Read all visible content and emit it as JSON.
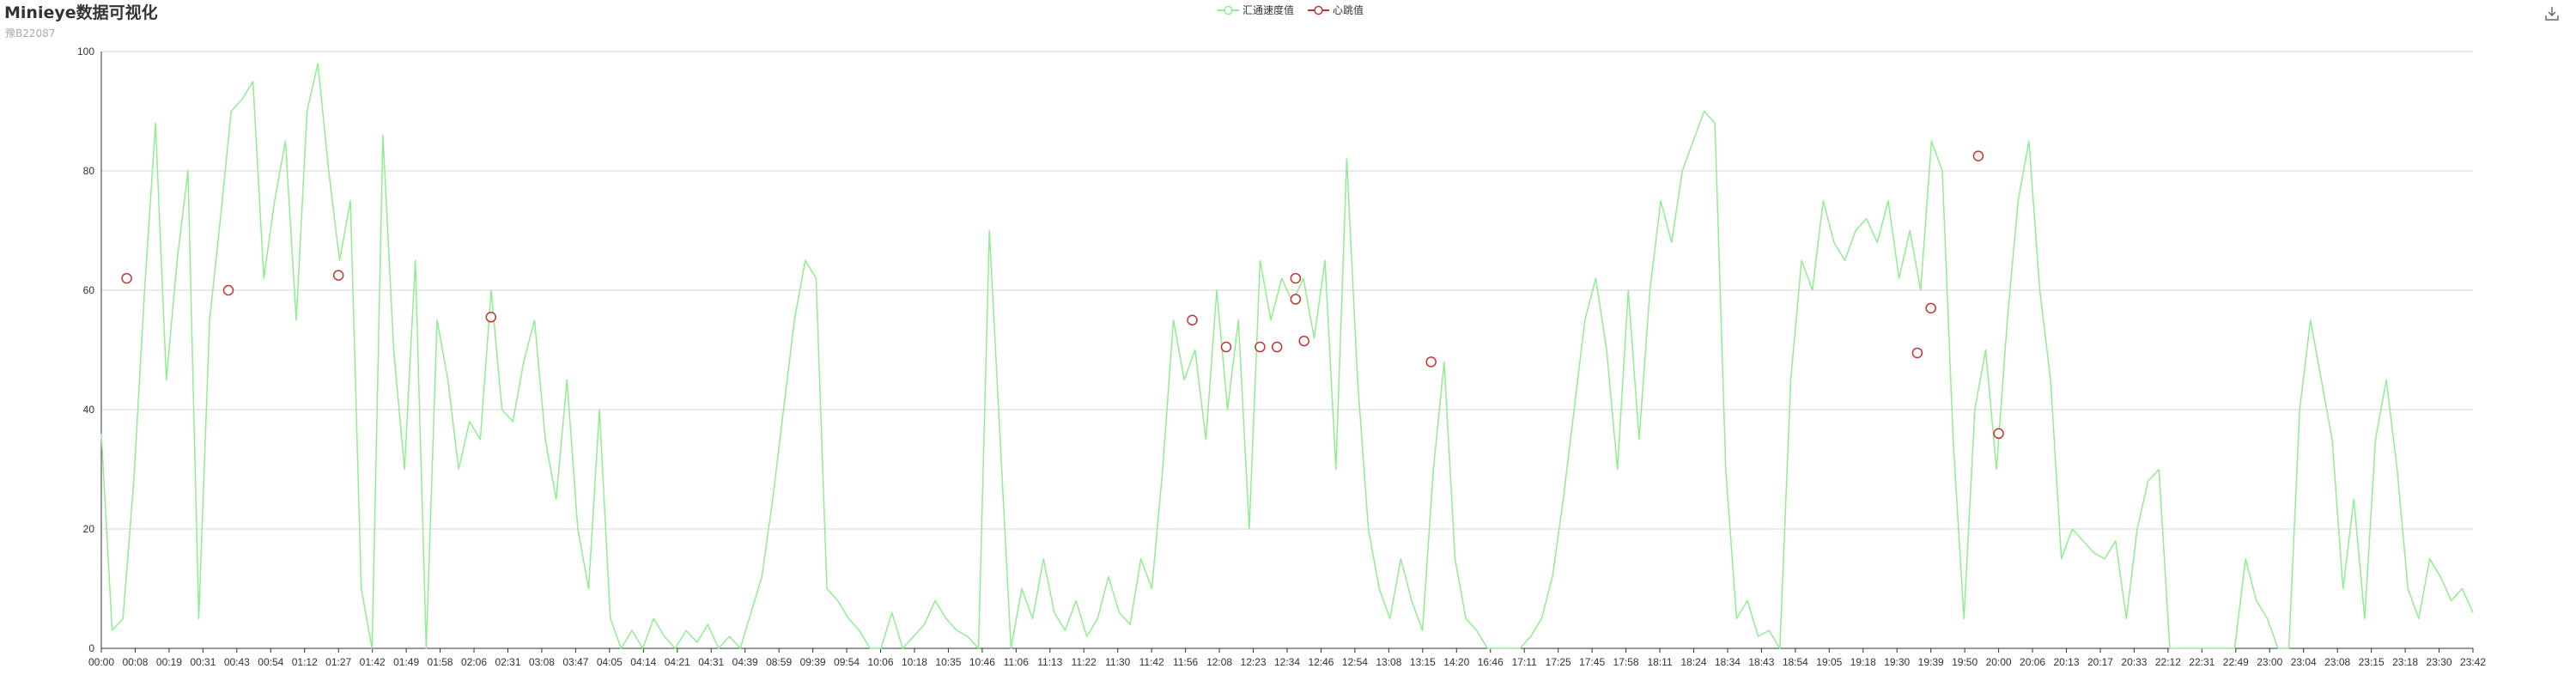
{
  "title": "Minieye数据可视化",
  "subtitle": "豫B22087",
  "legend": [
    {
      "name": "汇通速度值",
      "color": "#90ee90"
    },
    {
      "name": "心跳值",
      "color": "#c23531"
    }
  ],
  "toolbox": {
    "icon": "download-icon"
  },
  "chart_data": {
    "type": "line",
    "title": "Minieye数据可视化",
    "subtitle": "豫B22087",
    "xlabel": "",
    "ylabel": "",
    "ylim": [
      0,
      100
    ],
    "yticks": [
      0,
      20,
      40,
      60,
      80,
      100
    ],
    "x_tick_labels": [
      "00:00",
      "00:08",
      "00:19",
      "00:31",
      "00:43",
      "00:54",
      "01:12",
      "01:27",
      "01:42",
      "01:49",
      "01:58",
      "02:06",
      "02:31",
      "03:08",
      "03:47",
      "04:05",
      "04:14",
      "04:21",
      "04:31",
      "04:39",
      "08:59",
      "09:39",
      "09:54",
      "10:06",
      "10:18",
      "10:35",
      "10:46",
      "11:06",
      "11:13",
      "11:22",
      "11:30",
      "11:42",
      "11:56",
      "12:08",
      "12:23",
      "12:34",
      "12:46",
      "12:54",
      "13:08",
      "13:15",
      "14:20",
      "16:46",
      "17:11",
      "17:25",
      "17:45",
      "17:58",
      "18:11",
      "18:24",
      "18:34",
      "18:43",
      "18:54",
      "19:05",
      "19:18",
      "19:30",
      "19:39",
      "19:50",
      "20:00",
      "20:06",
      "20:13",
      "20:17",
      "20:33",
      "22:12",
      "22:31",
      "22:49",
      "23:00",
      "23:04",
      "23:08",
      "23:15",
      "23:18",
      "23:30",
      "23:42"
    ],
    "series": [
      {
        "name": "汇通速度值",
        "color": "#90ee90",
        "style": "line",
        "values": [
          36,
          3,
          5,
          28,
          60,
          88,
          45,
          65,
          80,
          5,
          55,
          72,
          90,
          92,
          95,
          62,
          75,
          85,
          55,
          90,
          98,
          80,
          65,
          75,
          10,
          0,
          86,
          50,
          30,
          65,
          0,
          55,
          45,
          30,
          38,
          35,
          60,
          40,
          38,
          48,
          55,
          35,
          25,
          45,
          20,
          10,
          40,
          5,
          0,
          3,
          0,
          5,
          2,
          0,
          3,
          1,
          4,
          0,
          2,
          0,
          6,
          12,
          25,
          40,
          55,
          65,
          62,
          10,
          8,
          5,
          3,
          0,
          0,
          6,
          0,
          2,
          4,
          8,
          5,
          3,
          2,
          0,
          70,
          35,
          0,
          10,
          5,
          15,
          6,
          3,
          8,
          2,
          5,
          12,
          6,
          4,
          15,
          10,
          30,
          55,
          45,
          50,
          35,
          60,
          40,
          55,
          20,
          65,
          55,
          62,
          58,
          62,
          52,
          65,
          30,
          82,
          45,
          20,
          10,
          5,
          15,
          8,
          3,
          30,
          48,
          15,
          5,
          3,
          0,
          0,
          0,
          0,
          2,
          5,
          12,
          25,
          40,
          55,
          62,
          50,
          30,
          60,
          35,
          60,
          75,
          68,
          80,
          85,
          90,
          88,
          30,
          5,
          8,
          2,
          3,
          0,
          45,
          65,
          60,
          75,
          68,
          65,
          70,
          72,
          68,
          75,
          62,
          70,
          60,
          85,
          80,
          35,
          5,
          40,
          50,
          30,
          55,
          75,
          85,
          60,
          45,
          15,
          20,
          18,
          16,
          15,
          18,
          5,
          20,
          28,
          30,
          0,
          0,
          0,
          0,
          0,
          0,
          0,
          15,
          8,
          5,
          0,
          0,
          40,
          55,
          45,
          35,
          10,
          25,
          5,
          35,
          45,
          30,
          10,
          5,
          15,
          12,
          8,
          10,
          6
        ]
      },
      {
        "name": "心跳值",
        "color": "#c23531",
        "style": "scatter",
        "points": [
          {
            "x": 0.75,
            "y": 62
          },
          {
            "x": 3.75,
            "y": 60
          },
          {
            "x": 7.0,
            "y": 62.5
          },
          {
            "x": 11.5,
            "y": 55.5
          },
          {
            "x": 32.2,
            "y": 55
          },
          {
            "x": 33.2,
            "y": 50.5
          },
          {
            "x": 34.2,
            "y": 50.5
          },
          {
            "x": 34.7,
            "y": 50.5
          },
          {
            "x": 35.25,
            "y": 62
          },
          {
            "x": 35.25,
            "y": 58.5
          },
          {
            "x": 35.5,
            "y": 51.5
          },
          {
            "x": 39.25,
            "y": 48
          },
          {
            "x": 53.6,
            "y": 49.5
          },
          {
            "x": 54.0,
            "y": 57
          },
          {
            "x": 55.4,
            "y": 82.5
          },
          {
            "x": 56.0,
            "y": 36
          }
        ]
      }
    ]
  }
}
